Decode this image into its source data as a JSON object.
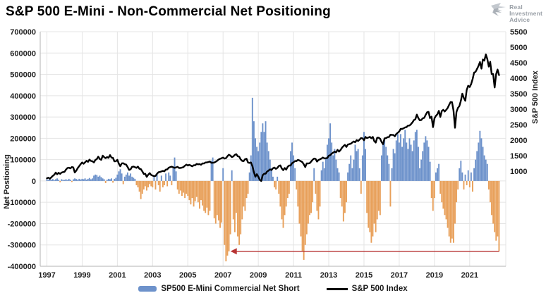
{
  "header": {
    "title": "S&P 500 E-Mini - Non-Commercial Net Positioning",
    "logo_lines": {
      "l1": "Real",
      "l2": "Investment",
      "l3": "Advice"
    }
  },
  "axes": {
    "left_title": "Net Postioning",
    "right_title": "S&P 500 Index"
  },
  "legend": {
    "bar_label": "SP500 E-Mini Commercial Net Short",
    "line_label": "S&P 500 Index"
  },
  "style": {
    "bar_positive": "#6d92cb",
    "bar_negative": "#e8a05a",
    "line_color": "#000000",
    "arrow_color": "#b73333",
    "grid_color": "#e4e4e4",
    "axis_line_color": "#b3b3b3",
    "text_color": "#1f1f1f",
    "logo_gray": "#9ba1a8"
  },
  "chart_data": {
    "type": "bar+line",
    "title": "S&P 500 E-Mini - Non-Commercial Net Positioning",
    "x": {
      "unit": "decimal_year",
      "interval": "monthly",
      "start": 1997.0,
      "domain": [
        1996.62,
        2023.05
      ],
      "ticks": [
        1997,
        1999,
        2001,
        2003,
        2005,
        2007,
        2009,
        2011,
        2013,
        2015,
        2017,
        2019,
        2021
      ]
    },
    "left_axis": {
      "label": "Net Postioning",
      "range": [
        -400000,
        700000
      ],
      "ticks": [
        700000,
        600000,
        500000,
        400000,
        300000,
        200000,
        100000,
        0,
        -100000,
        -200000,
        -300000,
        -400000
      ]
    },
    "right_axis": {
      "label": "S&P 500 Index",
      "range": [
        -2068,
        5500
      ],
      "ticks": [
        5500,
        5000,
        4500,
        4000,
        3500,
        3000,
        2500,
        2000,
        1500,
        1000
      ]
    },
    "series": [
      {
        "name": "SP500 E-Mini Commercial Net Short",
        "type": "bar",
        "axis": "left",
        "values": [
          8000,
          5000,
          10000,
          6000,
          9000,
          4000,
          8000,
          12000,
          6000,
          -6000,
          8000,
          5000,
          5000,
          8000,
          4000,
          10000,
          6000,
          -5000,
          8000,
          12000,
          9000,
          6000,
          10000,
          7000,
          10000,
          8000,
          12000,
          6000,
          10000,
          14000,
          8000,
          12000,
          25000,
          30000,
          28000,
          20000,
          25000,
          18000,
          12000,
          8000,
          -10000,
          6000,
          10000,
          8000,
          12000,
          -8000,
          10000,
          15000,
          30000,
          45000,
          55000,
          35000,
          -15000,
          20000,
          30000,
          40000,
          25000,
          35000,
          20000,
          15000,
          10000,
          -20000,
          -30000,
          -50000,
          -85000,
          -60000,
          -40000,
          -25000,
          -45000,
          -30000,
          -15000,
          -25000,
          -30000,
          20000,
          -40000,
          30000,
          -20000,
          -50000,
          25000,
          -30000,
          -20000,
          35000,
          -25000,
          40000,
          25000,
          -20000,
          60000,
          110000,
          45000,
          -40000,
          -60000,
          -45000,
          -70000,
          -55000,
          -80000,
          -60000,
          -70000,
          -90000,
          -110000,
          -80000,
          -120000,
          -95000,
          -75000,
          -100000,
          -130000,
          -90000,
          -115000,
          -140000,
          -150000,
          -125000,
          -160000,
          -140000,
          95000,
          110000,
          -175000,
          -200000,
          -160000,
          -185000,
          -220000,
          -195000,
          60000,
          -300000,
          -377000,
          -350000,
          -330000,
          -250000,
          50000,
          -180000,
          -240000,
          -150000,
          -260000,
          -300000,
          -250000,
          -180000,
          -120000,
          -140000,
          -80000,
          -60000,
          40000,
          120000,
          390000,
          280000,
          200000,
          160000,
          140000,
          180000,
          230000,
          270000,
          230000,
          280000,
          180000,
          140000,
          100000,
          60000,
          20000,
          -30000,
          -40000,
          20000,
          -60000,
          -120000,
          -180000,
          -220000,
          -160000,
          -120000,
          -80000,
          -60000,
          140000,
          180000,
          120000,
          60000,
          -40000,
          -120000,
          -200000,
          -260000,
          -330000,
          -370000,
          -300000,
          -250000,
          -200000,
          -160000,
          -150000,
          -100000,
          60000,
          -60000,
          -140000,
          -180000,
          -120000,
          50000,
          90000,
          60000,
          110000,
          170000,
          200000,
          270000,
          180000,
          120000,
          150000,
          100000,
          60000,
          40000,
          -80000,
          -120000,
          -190000,
          -150000,
          -100000,
          40000,
          80000,
          120000,
          60000,
          100000,
          170000,
          140000,
          150000,
          60000,
          -60000,
          120000,
          230000,
          150000,
          -150000,
          -220000,
          -240000,
          -290000,
          -260000,
          -200000,
          -240000,
          -180000,
          -140000,
          -160000,
          120000,
          180000,
          200000,
          160000,
          120000,
          80000,
          -120000,
          60000,
          150000,
          130000,
          190000,
          220000,
          180000,
          220000,
          160000,
          200000,
          240000,
          180000,
          150000,
          200000,
          170000,
          140000,
          190000,
          230000,
          240000,
          160000,
          60000,
          100000,
          140000,
          180000,
          210000,
          190000,
          160000,
          90000,
          -80000,
          -140000,
          -80000,
          40000,
          60000,
          80000,
          -60000,
          -100000,
          -130000,
          -160000,
          -180000,
          -220000,
          -260000,
          -290000,
          -270000,
          -290000,
          -200000,
          -100000,
          -40000,
          60000,
          95000,
          40000,
          -40000,
          30000,
          -20000,
          50000,
          -30000,
          40000,
          -50000,
          60000,
          100000,
          140000,
          180000,
          235000,
          200000,
          160000,
          120000,
          100000,
          80000,
          -40000,
          -100000,
          -160000,
          -200000,
          -240000,
          -280000,
          -260000,
          -330000
        ]
      },
      {
        "name": "S&P 500 Index",
        "type": "line",
        "axis": "right",
        "values": [
          770,
          790,
          757,
          801,
          848,
          885,
          954,
          899,
          947,
          914,
          955,
          970,
          980,
          1049,
          1102,
          1112,
          1091,
          1134,
          1121,
          957,
          1017,
          1099,
          1164,
          1229,
          1280,
          1238,
          1286,
          1335,
          1302,
          1373,
          1329,
          1320,
          1283,
          1363,
          1389,
          1469,
          1394,
          1366,
          1499,
          1452,
          1421,
          1455,
          1431,
          1518,
          1437,
          1429,
          1315,
          1320,
          1366,
          1240,
          1160,
          1249,
          1256,
          1224,
          1211,
          1134,
          1041,
          1060,
          1139,
          1148,
          1130,
          1107,
          1147,
          1077,
          1067,
          990,
          911,
          916,
          815,
          886,
          936,
          880,
          856,
          841,
          848,
          917,
          964,
          975,
          990,
          1008,
          996,
          1051,
          1058,
          1112,
          1131,
          1145,
          1126,
          1107,
          1121,
          1141,
          1102,
          1104,
          1115,
          1130,
          1174,
          1212,
          1181,
          1204,
          1181,
          1157,
          1192,
          1191,
          1234,
          1220,
          1229,
          1207,
          1249,
          1248,
          1280,
          1281,
          1295,
          1311,
          1270,
          1270,
          1277,
          1304,
          1336,
          1378,
          1401,
          1418,
          1438,
          1407,
          1421,
          1482,
          1531,
          1503,
          1455,
          1474,
          1527,
          1549,
          1481,
          1468,
          1379,
          1331,
          1323,
          1386,
          1400,
          1280,
          1267,
          1283,
          1166,
          969,
          820,
          903,
          826,
          720,
          683,
          873,
          919,
          919,
          987,
          1021,
          1057,
          1036,
          1096,
          1115,
          1074,
          1104,
          1169,
          1187,
          1089,
          1031,
          1102,
          1049,
          1141,
          1183,
          1181,
          1258,
          1286,
          1327,
          1326,
          1364,
          1345,
          1321,
          1292,
          1219,
          1131,
          1253,
          1247,
          1258,
          1312,
          1366,
          1408,
          1398,
          1310,
          1362,
          1379,
          1407,
          1441,
          1412,
          1416,
          1426,
          1498,
          1515,
          1569,
          1598,
          1631,
          1606,
          1686,
          1633,
          1682,
          1757,
          1806,
          1848,
          1783,
          1859,
          1872,
          1884,
          1924,
          1960,
          1931,
          2003,
          1972,
          2018,
          2068,
          2059,
          1995,
          2105,
          2068,
          2086,
          2107,
          2063,
          2104,
          1972,
          1920,
          2079,
          2080,
          2044,
          1940,
          1870,
          2060,
          2065,
          2097,
          2099,
          2174,
          2171,
          2168,
          2126,
          2199,
          2239,
          2279,
          2364,
          2363,
          2384,
          2412,
          2423,
          2470,
          2472,
          2519,
          2575,
          2648,
          2674,
          2824,
          2714,
          2641,
          2648,
          2705,
          2718,
          2816,
          2902,
          2914,
          2712,
          2760,
          2420,
          2704,
          2784,
          2834,
          2946,
          2752,
          2942,
          2980,
          2926,
          2977,
          3038,
          3141,
          3231,
          3226,
          2954,
          2400,
          2912,
          3044,
          3100,
          3271,
          3500,
          3363,
          3270,
          3622,
          3756,
          3714,
          3811,
          3973,
          4181,
          4204,
          4298,
          4395,
          4523,
          4308,
          4605,
          4567,
          4766,
          4620,
          4374,
          4530,
          4132,
          4132,
          3700,
          4130,
          4280,
          4100
        ]
      }
    ],
    "annotation": {
      "type": "arrow",
      "y_value": -330000,
      "x_from": 2022.67,
      "x_to": 2007.42,
      "color": "#b73333"
    },
    "legend_position": "bottom-center",
    "grid": true
  }
}
